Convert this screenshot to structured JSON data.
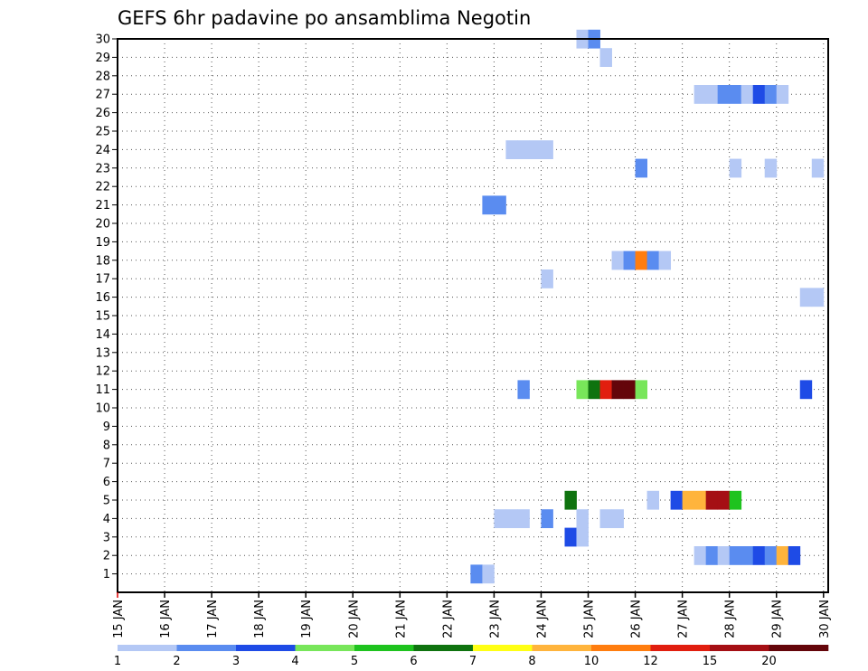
{
  "chart_data": {
    "type": "heatmap",
    "title": "GEFS 6hr padavine po ansamblima Negotin",
    "xlabel": "",
    "ylabel": "",
    "x_ticks": [
      "15 JAN",
      "16 JAN",
      "17 JAN",
      "18 JAN",
      "19 JAN",
      "20 JAN",
      "21 JAN",
      "22 JAN",
      "23 JAN",
      "24 JAN",
      "25 JAN",
      "26 JAN",
      "27 JAN",
      "28 JAN",
      "29 JAN",
      "30 JAN"
    ],
    "x_range_days": [
      15,
      30.1
    ],
    "x_step_hours": 6,
    "y_ticks": [
      1,
      2,
      3,
      4,
      5,
      6,
      7,
      8,
      9,
      10,
      11,
      12,
      13,
      14,
      15,
      16,
      17,
      18,
      19,
      20,
      21,
      22,
      23,
      24,
      25,
      26,
      27,
      28,
      29,
      30
    ],
    "y_range": [
      0,
      30
    ],
    "grid": true,
    "colorbar": {
      "labels": [
        "1",
        "2",
        "3",
        "4",
        "5",
        "6",
        "7",
        "8",
        "10",
        "12",
        "15",
        "20"
      ],
      "colors": [
        "#b4c8f5",
        "#5a8cf0",
        "#1e4be6",
        "#78e65a",
        "#1ec31e",
        "#0f730f",
        "#ffff14",
        "#ffb43c",
        "#ff7d0f",
        "#e11e0f",
        "#a50f14",
        "#64050a"
      ]
    },
    "cells": [
      {
        "member": 30,
        "day": 24.75,
        "level": 1
      },
      {
        "member": 30,
        "day": 25.0,
        "level": 2
      },
      {
        "member": 29,
        "day": 25.25,
        "level": 1
      },
      {
        "member": 27,
        "day": 27.25,
        "level": 1
      },
      {
        "member": 27,
        "day": 27.5,
        "level": 1
      },
      {
        "member": 27,
        "day": 27.75,
        "level": 2
      },
      {
        "member": 27,
        "day": 28.0,
        "level": 2
      },
      {
        "member": 27,
        "day": 28.25,
        "level": 1
      },
      {
        "member": 27,
        "day": 28.5,
        "level": 3
      },
      {
        "member": 27,
        "day": 28.75,
        "level": 2
      },
      {
        "member": 27,
        "day": 29.0,
        "level": 1
      },
      {
        "member": 24,
        "day": 23.25,
        "level": 1
      },
      {
        "member": 24,
        "day": 23.5,
        "level": 1
      },
      {
        "member": 24,
        "day": 23.75,
        "level": 1
      },
      {
        "member": 24,
        "day": 24.0,
        "level": 1
      },
      {
        "member": 23,
        "day": 26.0,
        "level": 2
      },
      {
        "member": 23,
        "day": 28.0,
        "level": 1
      },
      {
        "member": 23,
        "day": 28.75,
        "level": 1
      },
      {
        "member": 23,
        "day": 29.75,
        "level": 1
      },
      {
        "member": 21,
        "day": 22.75,
        "level": 2
      },
      {
        "member": 21,
        "day": 23.0,
        "level": 2
      },
      {
        "member": 18,
        "day": 25.5,
        "level": 1
      },
      {
        "member": 18,
        "day": 25.75,
        "level": 2
      },
      {
        "member": 18,
        "day": 26.0,
        "level": 9
      },
      {
        "member": 18,
        "day": 26.25,
        "level": 2
      },
      {
        "member": 18,
        "day": 26.5,
        "level": 1
      },
      {
        "member": 17,
        "day": 24.0,
        "level": 1
      },
      {
        "member": 16,
        "day": 29.5,
        "level": 1
      },
      {
        "member": 16,
        "day": 29.75,
        "level": 1
      },
      {
        "member": 11,
        "day": 23.5,
        "level": 2
      },
      {
        "member": 11,
        "day": 24.75,
        "level": 4
      },
      {
        "member": 11,
        "day": 25.0,
        "level": 6
      },
      {
        "member": 11,
        "day": 25.25,
        "level": 10
      },
      {
        "member": 11,
        "day": 25.5,
        "level": 12
      },
      {
        "member": 11,
        "day": 25.75,
        "level": 12
      },
      {
        "member": 11,
        "day": 26.0,
        "level": 4
      },
      {
        "member": 11,
        "day": 29.5,
        "level": 3
      },
      {
        "member": 5,
        "day": 24.5,
        "level": 6
      },
      {
        "member": 5,
        "day": 26.25,
        "level": 1
      },
      {
        "member": 5,
        "day": 26.75,
        "level": 3
      },
      {
        "member": 5,
        "day": 27.0,
        "level": 8
      },
      {
        "member": 5,
        "day": 27.25,
        "level": 8
      },
      {
        "member": 5,
        "day": 27.5,
        "level": 11
      },
      {
        "member": 5,
        "day": 27.75,
        "level": 11
      },
      {
        "member": 5,
        "day": 28.0,
        "level": 5
      },
      {
        "member": 4,
        "day": 23.0,
        "level": 1
      },
      {
        "member": 4,
        "day": 23.25,
        "level": 1
      },
      {
        "member": 4,
        "day": 23.5,
        "level": 1
      },
      {
        "member": 4,
        "day": 24.0,
        "level": 2
      },
      {
        "member": 4,
        "day": 24.75,
        "level": 1
      },
      {
        "member": 4,
        "day": 25.25,
        "level": 1
      },
      {
        "member": 4,
        "day": 25.5,
        "level": 1
      },
      {
        "member": 3,
        "day": 24.5,
        "level": 3
      },
      {
        "member": 3,
        "day": 24.75,
        "level": 1
      },
      {
        "member": 2,
        "day": 27.25,
        "level": 1
      },
      {
        "member": 2,
        "day": 27.5,
        "level": 2
      },
      {
        "member": 2,
        "day": 27.75,
        "level": 1
      },
      {
        "member": 2,
        "day": 28.0,
        "level": 2
      },
      {
        "member": 2,
        "day": 28.25,
        "level": 2
      },
      {
        "member": 2,
        "day": 28.5,
        "level": 3
      },
      {
        "member": 2,
        "day": 28.75,
        "level": 2
      },
      {
        "member": 2,
        "day": 29.0,
        "level": 8
      },
      {
        "member": 2,
        "day": 29.25,
        "level": 3
      },
      {
        "member": 1,
        "day": 22.5,
        "level": 2
      },
      {
        "member": 1,
        "day": 22.75,
        "level": 1
      }
    ]
  }
}
